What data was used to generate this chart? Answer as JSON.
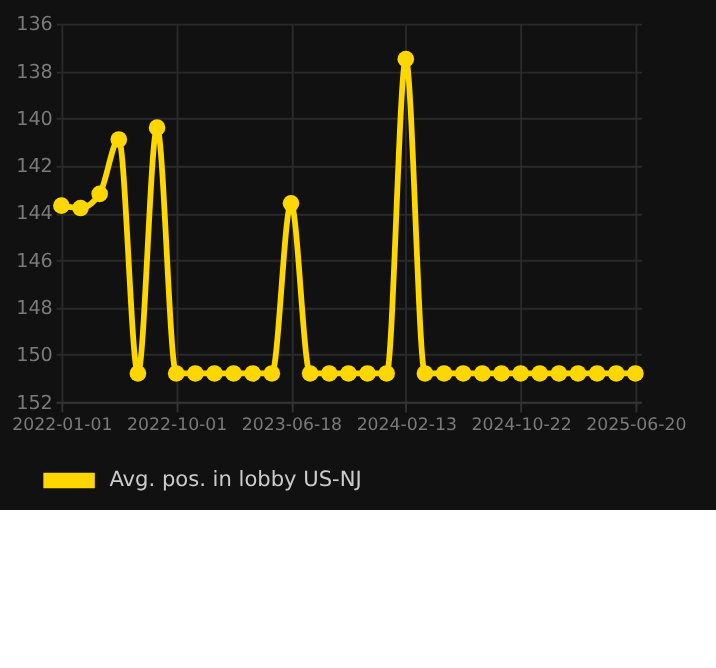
{
  "chart_data": {
    "type": "line",
    "categories": [
      "2022-01-01",
      null,
      null,
      null,
      null,
      null,
      "2022-10-01",
      null,
      null,
      null,
      null,
      null,
      "2023-06-18",
      null,
      null,
      null,
      null,
      null,
      "2024-02-13",
      null,
      null,
      null,
      null,
      null,
      "2024-10-22",
      null,
      null,
      null,
      null,
      null,
      "2025-06-20"
    ],
    "series": [
      {
        "name": "Avg. pos. in lobby US-NJ",
        "color": "#ffd700",
        "values": [
          143.7,
          143.8,
          143.2,
          140.9,
          150.8,
          140.4,
          150.8,
          150.8,
          150.8,
          150.8,
          150.8,
          150.8,
          143.6,
          150.8,
          150.8,
          150.8,
          150.8,
          150.8,
          137.5,
          150.8,
          150.8,
          150.8,
          150.8,
          150.8,
          150.8,
          150.8,
          150.8,
          150.8,
          150.8,
          150.8,
          150.8
        ]
      }
    ],
    "ylim": [
      152,
      136
    ],
    "yticks": [
      136,
      138,
      140,
      142,
      144,
      146,
      148,
      150,
      152
    ],
    "grid": true,
    "legend": "bottom",
    "marker": "circle",
    "line_style": "solid"
  }
}
